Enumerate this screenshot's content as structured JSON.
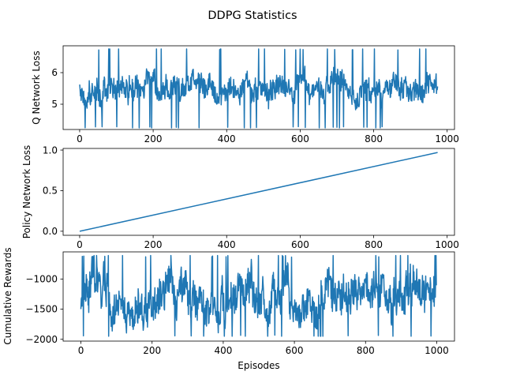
{
  "figure": {
    "title": "DDPG Statistics"
  },
  "chart_data": [
    {
      "type": "line",
      "ylabel": "Q Network Loss",
      "xlabel": "",
      "xlim": [
        -45,
        1020
      ],
      "ylim": [
        4.2,
        6.85
      ],
      "xticks": [
        0,
        200,
        400,
        600,
        800,
        1000
      ],
      "yticks": [
        5,
        6
      ],
      "n_points": 975,
      "x_range": [
        0,
        974
      ],
      "y_range_observed": [
        4.25,
        6.75
      ],
      "y_typical_band": [
        5.0,
        6.0
      ],
      "shape": "noisy fluctuation around 5.5",
      "grid": false
    },
    {
      "type": "line",
      "ylabel": "Policy Network Loss",
      "xlabel": "",
      "xlim": [
        -45,
        1020
      ],
      "ylim": [
        -0.05,
        1.02
      ],
      "xticks": [
        0,
        200,
        400,
        600,
        800,
        1000
      ],
      "yticks": [
        0.0,
        0.5,
        1.0
      ],
      "ytick_labels": [
        "0.0",
        "0.5",
        "1.0"
      ],
      "x": [
        0,
        974
      ],
      "y": [
        0.0,
        0.97
      ],
      "shape": "straight increasing line",
      "grid": false
    },
    {
      "type": "line",
      "ylabel": "Cumulative Rewards",
      "xlabel": "Episodes",
      "xlim": [
        -50,
        1050
      ],
      "ylim": [
        -2030,
        -550
      ],
      "xticks": [
        0,
        200,
        400,
        600,
        800,
        1000
      ],
      "yticks": [
        -2000,
        -1500,
        -1000
      ],
      "ytick_labels": [
        "−2000",
        "−1500",
        "−1000"
      ],
      "n_points": 1000,
      "x_range": [
        0,
        999
      ],
      "y_range_observed": [
        -1950,
        -610
      ],
      "y_typical_band": [
        -1700,
        -850
      ],
      "shape": "noisy fluctuation around -1250",
      "grid": false
    }
  ]
}
